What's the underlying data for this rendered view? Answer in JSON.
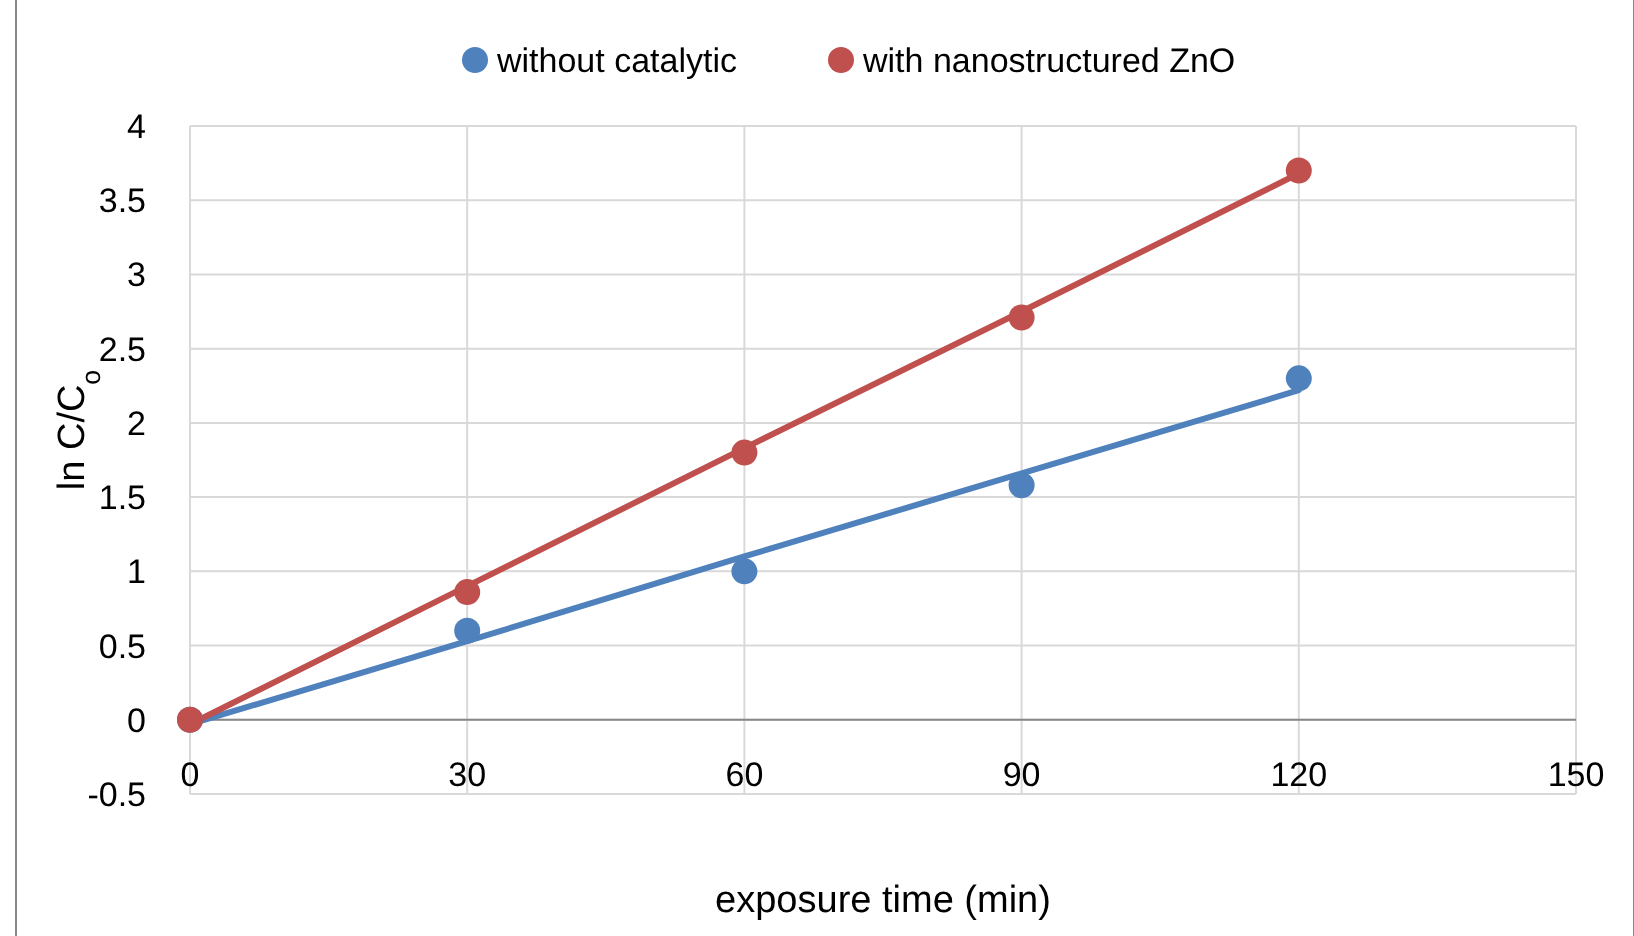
{
  "chart_data": {
    "type": "scatter",
    "xlabel": "exposure time (min)",
    "ylabel": "ln C/C$_{o}$",
    "x": [
      0,
      30,
      60,
      90,
      120
    ],
    "series": [
      {
        "name": "without catalytic",
        "color": "#4f81bd",
        "marker": "circle",
        "values": [
          0,
          0.6,
          1.0,
          1.58,
          2.3
        ]
      },
      {
        "name": "with nanostructured ZnO",
        "color": "#c0504d",
        "marker": "circle",
        "values": [
          0,
          0.86,
          1.8,
          2.71,
          3.7
        ]
      },
      {
        "type": "line",
        "color": "#4f81bd",
        "marker": "none",
        "values": [
          -0.03,
          0.53,
          1.1,
          1.66,
          2.22
        ]
      },
      {
        "type": "line",
        "color": "#c0504d",
        "marker": "none",
        "values": [
          -0.03,
          0.9,
          1.83,
          2.75,
          3.68
        ]
      }
    ],
    "xlim": [
      0,
      150
    ],
    "xticks": [
      0,
      30,
      60,
      90,
      120,
      150
    ],
    "ylim": [
      -0.5,
      4
    ],
    "yticks": [
      -0.5,
      0,
      0.5,
      1,
      1.5,
      2,
      2.5,
      3,
      3.5,
      4
    ],
    "grid": true,
    "legend": "top",
    "line_style": "solid"
  }
}
